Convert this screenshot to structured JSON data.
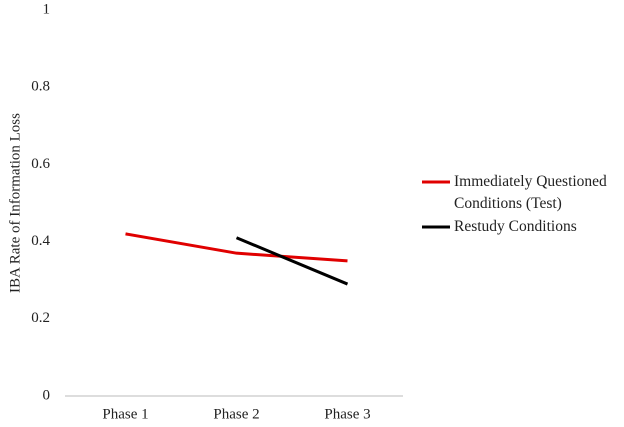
{
  "chart_data": {
    "type": "line",
    "ylabel": "IBA Rate of Information Loss",
    "categories": [
      "Phase 1",
      "Phase 2",
      "Phase 3"
    ],
    "series": [
      {
        "name": "Immediately Questioned Conditions (Test)",
        "color": "#e00000",
        "values": [
          0.42,
          0.37,
          0.35
        ]
      },
      {
        "name": "Restudy Conditions",
        "color": "#000000",
        "values": [
          null,
          0.41,
          0.29
        ]
      }
    ],
    "ylim": [
      0,
      1
    ],
    "yticks": [
      0,
      0.2,
      0.4,
      0.6,
      0.8,
      1
    ],
    "grid": false,
    "legend": "right"
  }
}
